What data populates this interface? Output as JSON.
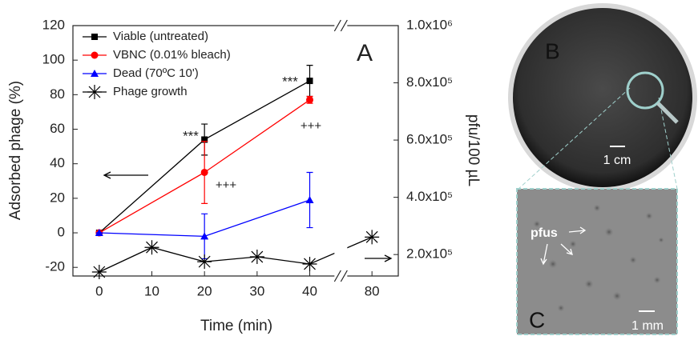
{
  "chart_data": {
    "type": "line",
    "xlabel": "Time (min)",
    "ylabel": "Adsorbed phage (%)",
    "y2label": "pfu/100 µL",
    "xlim": [
      -5,
      85
    ],
    "xticks": [
      0,
      10,
      20,
      30,
      40,
      80
    ],
    "xbreak": [
      45,
      75
    ],
    "ylim": [
      -25,
      120
    ],
    "yticks": [
      -20,
      0,
      20,
      40,
      60,
      80,
      100,
      120
    ],
    "y2lim": [
      125000,
      1000000
    ],
    "y2ticks": [
      {
        "value": 200000,
        "label": "2.0x10⁵"
      },
      {
        "value": 400000,
        "label": "4.0x10⁵"
      },
      {
        "value": 600000,
        "label": "6.0x10⁵"
      },
      {
        "value": 800000,
        "label": "8.0x10⁵"
      },
      {
        "value": 1000000,
        "label": "1.0x10⁶"
      }
    ],
    "legend": "upper left",
    "series": [
      {
        "name": "Viable (untreated)",
        "color": "#000000",
        "marker": "square",
        "x": [
          0,
          20,
          40
        ],
        "values": [
          0,
          54,
          88
        ],
        "errors": [
          0,
          9,
          9
        ]
      },
      {
        "name": "VBNC (0.01% bleach)",
        "color": "#ff0000",
        "marker": "circle",
        "x": [
          0,
          20,
          40
        ],
        "values": [
          0,
          35,
          77
        ],
        "errors": [
          0,
          18,
          2
        ]
      },
      {
        "name": "Dead (70ºC 10')",
        "color": "#0000ff",
        "marker": "triangle",
        "x": [
          0,
          20,
          40
        ],
        "values": [
          0,
          -2,
          19
        ],
        "errors": [
          0,
          13,
          16
        ]
      },
      {
        "name": "Phage growth",
        "color": "#000000",
        "marker": "asterisk",
        "axis": "y2",
        "x": [
          0,
          10,
          20,
          30,
          40,
          80
        ],
        "values": [
          139000,
          225000,
          175000,
          192000,
          167000,
          261000
        ]
      }
    ],
    "annotations": [
      "***",
      "***",
      "+++",
      "+++",
      "A"
    ]
  },
  "panels": {
    "b": {
      "label": "B",
      "scale": "1 cm"
    },
    "c": {
      "label": "C",
      "scale": "1 mm",
      "note": "pfus"
    }
  }
}
